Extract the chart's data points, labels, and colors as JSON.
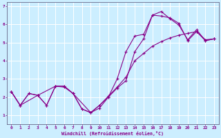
{
  "xlabel": "Windchill (Refroidissement éolien,°C)",
  "bg_color": "#cceeff",
  "grid_color": "#aaddcc",
  "line_color": "#880088",
  "marker": "+",
  "xlim": [
    -0.5,
    23.5
  ],
  "ylim": [
    0.5,
    7.2
  ],
  "yticks": [
    1,
    2,
    3,
    4,
    5,
    6,
    7
  ],
  "xticks": [
    0,
    1,
    2,
    3,
    4,
    5,
    6,
    7,
    8,
    9,
    10,
    11,
    12,
    13,
    14,
    15,
    16,
    17,
    18,
    19,
    20,
    21,
    22,
    23
  ],
  "line1_x": [
    0,
    1,
    2,
    3,
    4,
    5,
    6,
    7,
    8,
    9,
    10,
    11,
    12,
    13,
    14,
    15,
    16,
    17,
    18,
    19,
    20,
    21,
    22,
    23
  ],
  "line1_y": [
    2.3,
    1.55,
    2.2,
    2.1,
    1.55,
    2.6,
    2.6,
    2.2,
    1.35,
    1.15,
    1.4,
    2.0,
    3.0,
    4.5,
    5.35,
    5.45,
    6.5,
    6.45,
    6.35,
    6.05,
    5.1,
    5.6,
    5.15,
    5.2
  ],
  "line2_x": [
    0,
    1,
    2,
    3,
    4,
    5,
    6,
    7,
    8,
    9,
    10,
    11,
    12,
    13,
    14,
    15,
    16,
    17,
    18,
    19,
    20,
    21,
    22,
    23
  ],
  "line2_y": [
    2.3,
    1.55,
    2.2,
    2.1,
    1.55,
    2.6,
    2.6,
    2.2,
    1.35,
    1.15,
    1.55,
    2.0,
    2.5,
    2.9,
    4.5,
    5.2,
    6.5,
    6.7,
    6.3,
    5.95,
    5.15,
    5.7,
    5.1,
    5.2
  ],
  "line3_x": [
    0,
    1,
    3,
    5,
    6,
    7,
    9,
    10,
    11,
    12,
    13,
    14,
    15,
    16,
    17,
    18,
    19,
    20,
    21,
    22,
    23
  ],
  "line3_y": [
    2.3,
    1.55,
    2.1,
    2.6,
    2.55,
    2.2,
    1.15,
    1.55,
    2.05,
    2.55,
    3.1,
    4.0,
    4.4,
    4.8,
    5.05,
    5.25,
    5.4,
    5.5,
    5.6,
    5.1,
    5.2
  ]
}
